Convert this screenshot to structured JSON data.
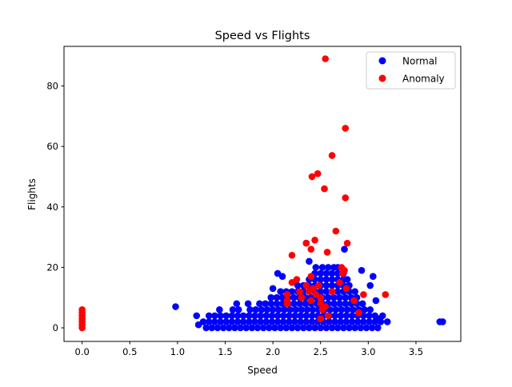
{
  "chart_data": {
    "type": "scatter",
    "title": "Speed vs Flights",
    "xlabel": "Speed",
    "ylabel": "Flights",
    "xlim": [
      -0.19,
      3.97
    ],
    "ylim": [
      -4.5,
      93.1
    ],
    "xticks": [
      0.0,
      0.5,
      1.0,
      1.5,
      2.0,
      2.5,
      3.0,
      3.5
    ],
    "xtick_labels": [
      "0.0",
      "0.5",
      "1.0",
      "1.5",
      "2.0",
      "2.5",
      "3.0",
      "3.5"
    ],
    "yticks": [
      0,
      20,
      40,
      60,
      80
    ],
    "ytick_labels": [
      "0",
      "20",
      "40",
      "60",
      "80"
    ],
    "grid": false,
    "legend": "top-right",
    "series": [
      {
        "name": "Normal",
        "color": "#0000ff",
        "points": [
          [
            0.98,
            7
          ],
          [
            1.2,
            4
          ],
          [
            1.22,
            1
          ],
          [
            3.75,
            2
          ],
          [
            3.78,
            2
          ],
          [
            3.2,
            2
          ],
          [
            3.15,
            4
          ],
          [
            3.12,
            3
          ],
          [
            3.08,
            9
          ],
          [
            3.05,
            17
          ],
          [
            3.02,
            14
          ],
          [
            2.93,
            19
          ],
          [
            2.75,
            26
          ],
          [
            2.45,
            20
          ],
          [
            2.38,
            22
          ],
          [
            2.05,
            18
          ],
          [
            2.1,
            17
          ],
          [
            2.0,
            13
          ],
          [
            2.35,
            28
          ],
          [
            1.3,
            0
          ],
          [
            1.36,
            0
          ],
          [
            1.42,
            0
          ],
          [
            1.48,
            0
          ],
          [
            1.54,
            0
          ],
          [
            1.6,
            0
          ],
          [
            1.66,
            0
          ],
          [
            1.72,
            0
          ],
          [
            1.78,
            0
          ],
          [
            1.84,
            0
          ],
          [
            1.9,
            0
          ],
          [
            1.96,
            0
          ],
          [
            2.02,
            0
          ],
          [
            2.08,
            0
          ],
          [
            2.14,
            0
          ],
          [
            2.2,
            0
          ],
          [
            2.26,
            0
          ],
          [
            2.32,
            0
          ],
          [
            2.38,
            0
          ],
          [
            2.44,
            0
          ],
          [
            2.5,
            0
          ],
          [
            2.56,
            0
          ],
          [
            2.62,
            0
          ],
          [
            2.68,
            0
          ],
          [
            2.74,
            0
          ],
          [
            2.8,
            0
          ],
          [
            2.86,
            0
          ],
          [
            2.92,
            0
          ],
          [
            2.98,
            0
          ],
          [
            3.04,
            0
          ],
          [
            3.1,
            0
          ],
          [
            1.27,
            2
          ],
          [
            1.33,
            2
          ],
          [
            1.39,
            2
          ],
          [
            1.45,
            2
          ],
          [
            1.51,
            2
          ],
          [
            1.57,
            2
          ],
          [
            1.63,
            2
          ],
          [
            1.69,
            2
          ],
          [
            1.75,
            2
          ],
          [
            1.81,
            2
          ],
          [
            1.87,
            2
          ],
          [
            1.93,
            2
          ],
          [
            1.99,
            2
          ],
          [
            2.05,
            2
          ],
          [
            2.11,
            2
          ],
          [
            2.17,
            2
          ],
          [
            2.23,
            2
          ],
          [
            2.29,
            2
          ],
          [
            2.35,
            2
          ],
          [
            2.41,
            2
          ],
          [
            2.47,
            2
          ],
          [
            2.53,
            2
          ],
          [
            2.59,
            2
          ],
          [
            2.65,
            2
          ],
          [
            2.71,
            2
          ],
          [
            2.77,
            2
          ],
          [
            2.83,
            2
          ],
          [
            2.89,
            2
          ],
          [
            2.95,
            2
          ],
          [
            3.01,
            2
          ],
          [
            3.07,
            2
          ],
          [
            3.13,
            2
          ],
          [
            1.33,
            4
          ],
          [
            1.39,
            4
          ],
          [
            1.45,
            4
          ],
          [
            1.51,
            4
          ],
          [
            1.57,
            4
          ],
          [
            1.63,
            4
          ],
          [
            1.69,
            4
          ],
          [
            1.75,
            4
          ],
          [
            1.81,
            4
          ],
          [
            1.87,
            4
          ],
          [
            1.93,
            4
          ],
          [
            1.99,
            4
          ],
          [
            2.05,
            4
          ],
          [
            2.11,
            4
          ],
          [
            2.17,
            4
          ],
          [
            2.23,
            4
          ],
          [
            2.29,
            4
          ],
          [
            2.35,
            4
          ],
          [
            2.41,
            4
          ],
          [
            2.47,
            4
          ],
          [
            2.53,
            4
          ],
          [
            2.59,
            4
          ],
          [
            2.65,
            4
          ],
          [
            2.71,
            4
          ],
          [
            2.77,
            4
          ],
          [
            2.83,
            4
          ],
          [
            2.89,
            4
          ],
          [
            2.95,
            4
          ],
          [
            3.01,
            4
          ],
          [
            3.07,
            4
          ],
          [
            1.44,
            6
          ],
          [
            1.58,
            6
          ],
          [
            1.64,
            6
          ],
          [
            1.76,
            6
          ],
          [
            1.82,
            6
          ],
          [
            1.88,
            6
          ],
          [
            1.94,
            6
          ],
          [
            2.0,
            6
          ],
          [
            2.06,
            6
          ],
          [
            2.12,
            6
          ],
          [
            2.18,
            6
          ],
          [
            2.24,
            6
          ],
          [
            2.3,
            6
          ],
          [
            2.36,
            6
          ],
          [
            2.42,
            6
          ],
          [
            2.48,
            6
          ],
          [
            2.54,
            6
          ],
          [
            2.6,
            6
          ],
          [
            2.66,
            6
          ],
          [
            2.72,
            6
          ],
          [
            2.78,
            6
          ],
          [
            2.84,
            6
          ],
          [
            2.9,
            6
          ],
          [
            2.96,
            6
          ],
          [
            3.02,
            6
          ],
          [
            1.62,
            8
          ],
          [
            1.74,
            8
          ],
          [
            1.86,
            8
          ],
          [
            1.92,
            8
          ],
          [
            1.98,
            8
          ],
          [
            2.04,
            8
          ],
          [
            2.1,
            8
          ],
          [
            2.16,
            8
          ],
          [
            2.22,
            8
          ],
          [
            2.28,
            8
          ],
          [
            2.34,
            8
          ],
          [
            2.4,
            8
          ],
          [
            2.46,
            8
          ],
          [
            2.52,
            8
          ],
          [
            2.58,
            8
          ],
          [
            2.64,
            8
          ],
          [
            2.7,
            8
          ],
          [
            2.76,
            8
          ],
          [
            2.82,
            8
          ],
          [
            2.88,
            8
          ],
          [
            2.94,
            8
          ],
          [
            1.98,
            10
          ],
          [
            2.04,
            10
          ],
          [
            2.1,
            10
          ],
          [
            2.16,
            10
          ],
          [
            2.22,
            10
          ],
          [
            2.28,
            10
          ],
          [
            2.34,
            10
          ],
          [
            2.4,
            10
          ],
          [
            2.46,
            10
          ],
          [
            2.52,
            10
          ],
          [
            2.58,
            10
          ],
          [
            2.64,
            10
          ],
          [
            2.7,
            10
          ],
          [
            2.76,
            10
          ],
          [
            2.82,
            10
          ],
          [
            2.88,
            10
          ],
          [
            2.08,
            12
          ],
          [
            2.14,
            12
          ],
          [
            2.2,
            12
          ],
          [
            2.26,
            12
          ],
          [
            2.32,
            12
          ],
          [
            2.38,
            12
          ],
          [
            2.44,
            12
          ],
          [
            2.5,
            12
          ],
          [
            2.56,
            12
          ],
          [
            2.62,
            12
          ],
          [
            2.68,
            12
          ],
          [
            2.74,
            12
          ],
          [
            2.8,
            12
          ],
          [
            2.86,
            12
          ],
          [
            2.26,
            14
          ],
          [
            2.32,
            14
          ],
          [
            2.38,
            14
          ],
          [
            2.44,
            14
          ],
          [
            2.5,
            14
          ],
          [
            2.56,
            14
          ],
          [
            2.62,
            14
          ],
          [
            2.68,
            14
          ],
          [
            2.74,
            14
          ],
          [
            2.8,
            14
          ],
          [
            2.38,
            16
          ],
          [
            2.44,
            16
          ],
          [
            2.5,
            16
          ],
          [
            2.56,
            16
          ],
          [
            2.62,
            16
          ],
          [
            2.68,
            16
          ],
          [
            2.74,
            16
          ],
          [
            2.78,
            16
          ],
          [
            2.44,
            18
          ],
          [
            2.5,
            18
          ],
          [
            2.56,
            18
          ],
          [
            2.62,
            18
          ],
          [
            2.68,
            18
          ],
          [
            2.74,
            18
          ],
          [
            2.52,
            20
          ],
          [
            2.58,
            20
          ],
          [
            2.64,
            20
          ],
          [
            2.68,
            20
          ]
        ]
      },
      {
        "name": "Anomaly",
        "color": "#ff0000",
        "points": [
          [
            0,
            0
          ],
          [
            0,
            1
          ],
          [
            0,
            2
          ],
          [
            0,
            3
          ],
          [
            0,
            4
          ],
          [
            0,
            5
          ],
          [
            0,
            6
          ],
          [
            2.55,
            89
          ],
          [
            2.76,
            66
          ],
          [
            2.62,
            57
          ],
          [
            2.41,
            50
          ],
          [
            2.47,
            51
          ],
          [
            2.54,
            46
          ],
          [
            2.76,
            43
          ],
          [
            2.66,
            32
          ],
          [
            2.35,
            28
          ],
          [
            2.44,
            29
          ],
          [
            2.4,
            26
          ],
          [
            2.57,
            25
          ],
          [
            2.78,
            28
          ],
          [
            2.2,
            24
          ],
          [
            2.73,
            18
          ],
          [
            2.2,
            15
          ],
          [
            2.25,
            16
          ],
          [
            2.15,
            11
          ],
          [
            2.15,
            9
          ],
          [
            2.15,
            8
          ],
          [
            2.3,
            10
          ],
          [
            2.35,
            14
          ],
          [
            2.38,
            12
          ],
          [
            2.4,
            17
          ],
          [
            2.45,
            11
          ],
          [
            2.5,
            10
          ],
          [
            2.5,
            8
          ],
          [
            2.52,
            6
          ],
          [
            2.5,
            3
          ],
          [
            2.58,
            4
          ],
          [
            2.4,
            9
          ],
          [
            2.55,
            7
          ],
          [
            2.7,
            15
          ],
          [
            2.72,
            20
          ],
          [
            2.75,
            19
          ],
          [
            2.77,
            13
          ],
          [
            2.85,
            9
          ],
          [
            2.9,
            5
          ],
          [
            2.95,
            11
          ],
          [
            3.18,
            11
          ],
          [
            2.42,
            13
          ],
          [
            2.48,
            14
          ],
          [
            2.28,
            12
          ],
          [
            2.62,
            12
          ]
        ]
      }
    ]
  }
}
